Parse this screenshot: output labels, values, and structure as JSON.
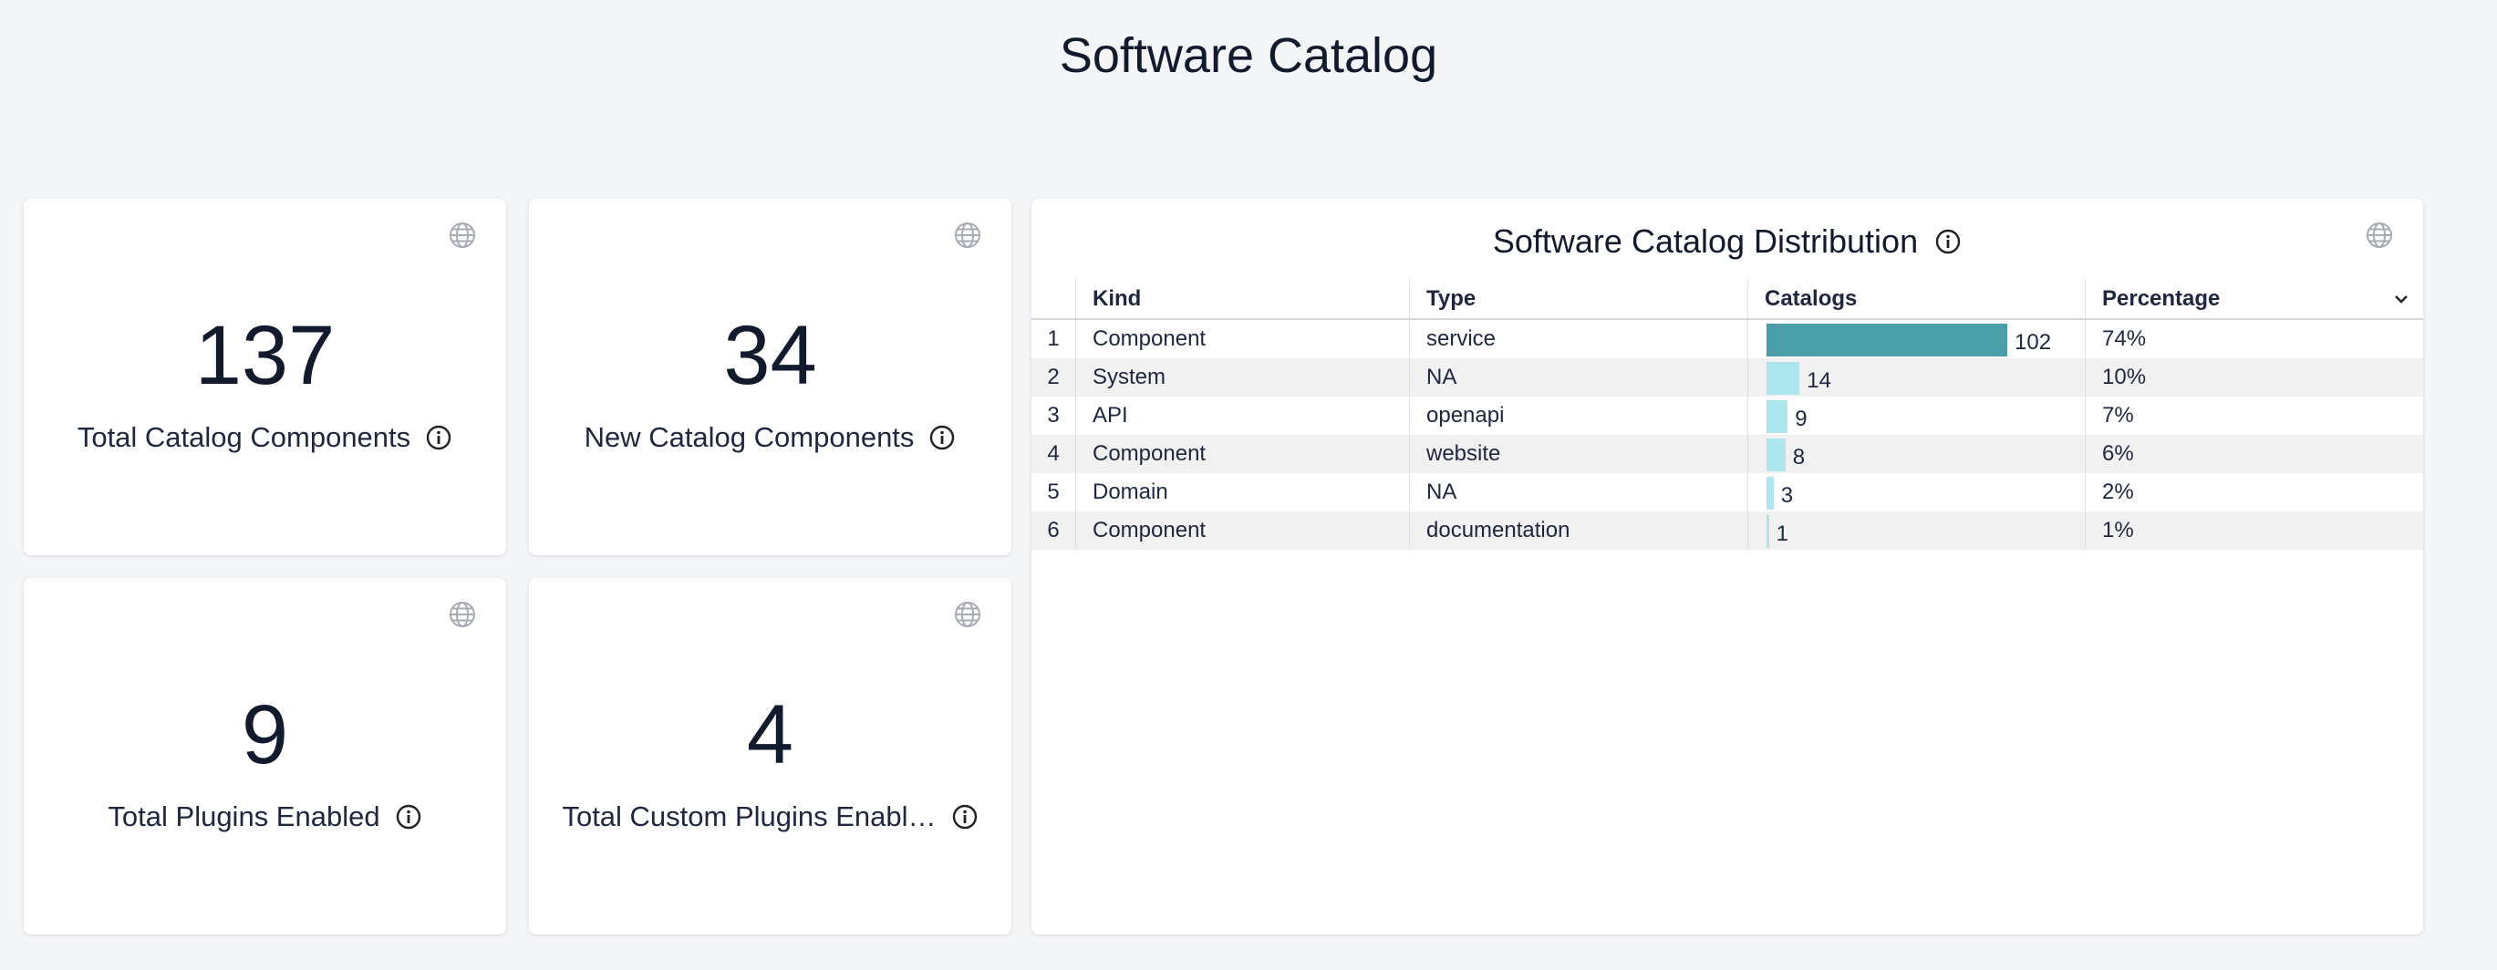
{
  "header": {
    "title": "Software Catalog"
  },
  "cards": [
    {
      "value": "137",
      "label": "Total Catalog Components"
    },
    {
      "value": "34",
      "label": "New Catalog Components"
    },
    {
      "value": "9",
      "label": "Total Plugins Enabled"
    },
    {
      "value": "4",
      "label": "Total Custom Plugins Enabl…"
    }
  ],
  "table": {
    "title": "Software Catalog Distribution",
    "columns": [
      "Kind",
      "Type",
      "Catalogs",
      "Percentage"
    ],
    "rows": [
      {
        "n": 1,
        "kind": "Component",
        "type": "service",
        "catalogs": 102,
        "percentage": "74%"
      },
      {
        "n": 2,
        "kind": "System",
        "type": "NA",
        "catalogs": 14,
        "percentage": "10%"
      },
      {
        "n": 3,
        "kind": "API",
        "type": "openapi",
        "catalogs": 9,
        "percentage": "7%"
      },
      {
        "n": 4,
        "kind": "Component",
        "type": "website",
        "catalogs": 8,
        "percentage": "6%"
      },
      {
        "n": 5,
        "kind": "Domain",
        "type": "NA",
        "catalogs": 3,
        "percentage": "2%"
      },
      {
        "n": 6,
        "kind": "Component",
        "type": "documentation",
        "catalogs": 1,
        "percentage": "1%"
      }
    ]
  }
}
